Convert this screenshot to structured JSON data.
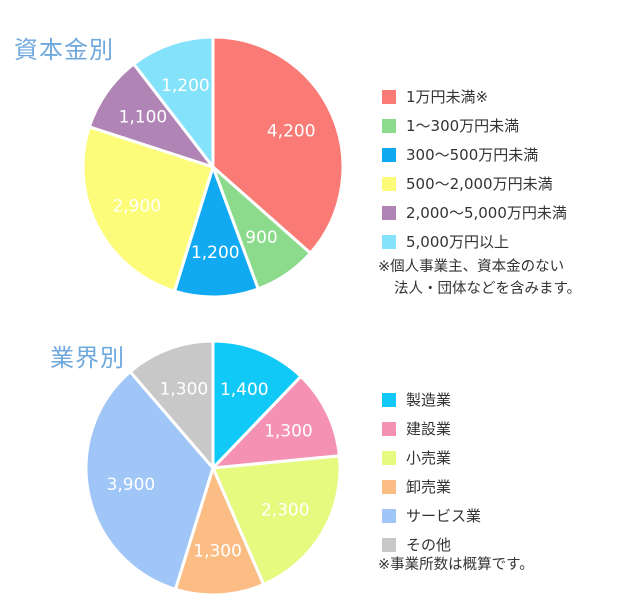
{
  "sections": [
    {
      "title": "資本金別",
      "note_line1": "※個人事業主、資本金のない",
      "note_line2": "法人・団体などを含みます。"
    },
    {
      "title": "業界別",
      "note_line1": "※事業所数は概算です。"
    }
  ],
  "chart_data": [
    {
      "type": "pie",
      "title": "資本金別",
      "categories": [
        "1万円未満※",
        "1～300万円未満",
        "300～500万円未満",
        "500～2,000万円未満",
        "2,000～5,000万円未満",
        "5,000万円以上"
      ],
      "values": [
        4200,
        900,
        1200,
        2900,
        1100,
        1200
      ],
      "value_labels": [
        "4,200",
        "900",
        "1,200",
        "2,900",
        "1,100",
        "1,200"
      ],
      "colors": [
        "#fa7a76",
        "#8cdb8c",
        "#11aaf2",
        "#fcfc7a",
        "#b184b6",
        "#84e2fb"
      ],
      "legend_position": "right"
    },
    {
      "type": "pie",
      "title": "業界別",
      "categories": [
        "製造業",
        "建設業",
        "小売業",
        "卸売業",
        "サービス業",
        "その他"
      ],
      "values": [
        1400,
        1300,
        2300,
        1300,
        3900,
        1300
      ],
      "value_labels": [
        "1,400",
        "1,300",
        "2,300",
        "1,300",
        "3,900",
        "1,300"
      ],
      "colors": [
        "#11c9f6",
        "#f592b3",
        "#e5fa7e",
        "#fbbd84",
        "#9fc6f7",
        "#c8c8c8"
      ],
      "legend_position": "right"
    }
  ]
}
